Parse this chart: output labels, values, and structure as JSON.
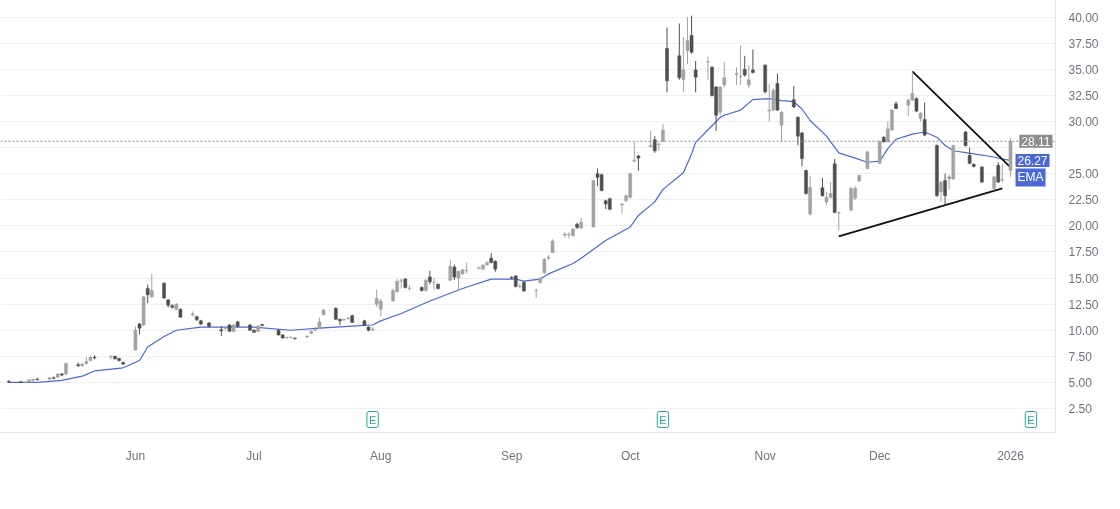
{
  "chart_data": {
    "type": "candlestick",
    "xlim": [
      "2025-04-30",
      "2026-01-13"
    ],
    "ylim": [
      0.2,
      41.6
    ],
    "xticks": [
      {
        "value": "2025-06-02",
        "label": "Jun"
      },
      {
        "value": "2025-07-01",
        "label": "Jul"
      },
      {
        "value": "2025-08-01",
        "label": "Aug"
      },
      {
        "value": "2025-09-02",
        "label": "Sep"
      },
      {
        "value": "2025-10-01",
        "label": "Oct"
      },
      {
        "value": "2025-11-03",
        "label": "Nov"
      },
      {
        "value": "2025-12-01",
        "label": "Dec"
      },
      {
        "value": "2026-01-02",
        "label": "2026"
      }
    ],
    "yticks": [
      {
        "value": 2.5,
        "label": "2.50"
      },
      {
        "value": 5,
        "label": "5.00"
      },
      {
        "value": 7.5,
        "label": "7.50"
      },
      {
        "value": 10,
        "label": "10.00"
      },
      {
        "value": 12.5,
        "label": "12.50"
      },
      {
        "value": 15,
        "label": "15.00"
      },
      {
        "value": 17.5,
        "label": "17.50"
      },
      {
        "value": 20,
        "label": "20.00"
      },
      {
        "value": 22.5,
        "label": "22.50"
      },
      {
        "value": 25,
        "label": "25.00"
      },
      {
        "value": 27.5,
        "label": null
      },
      {
        "value": 30,
        "label": "30.00"
      },
      {
        "value": 32.5,
        "label": "32.50"
      },
      {
        "value": 35,
        "label": "35.00"
      },
      {
        "value": 37.5,
        "label": "37.50"
      },
      {
        "value": 40,
        "label": "40.00"
      }
    ],
    "grid": "y",
    "series": [
      {
        "type": "line",
        "name": "EMA",
        "color": "#4a68d8",
        "x": [
          "2025-05-02",
          "2025-05-09",
          "2025-05-15",
          "2025-05-20",
          "2025-05-23",
          "2025-05-30",
          "2025-06-03",
          "2025-06-05",
          "2025-06-09",
          "2025-06-12",
          "2025-06-18",
          "2025-06-25",
          "2025-07-01",
          "2025-07-10",
          "2025-07-17",
          "2025-07-25",
          "2025-07-30",
          "2025-08-01",
          "2025-08-06",
          "2025-08-13",
          "2025-08-21",
          "2025-08-28",
          "2025-09-03",
          "2025-09-05",
          "2025-09-09",
          "2025-09-11",
          "2025-09-17",
          "2025-09-19",
          "2025-09-25",
          "2025-10-01",
          "2025-10-03",
          "2025-10-07",
          "2025-10-09",
          "2025-10-14",
          "2025-10-16",
          "2025-10-17",
          "2025-10-21",
          "2025-10-23",
          "2025-10-24",
          "2025-10-28",
          "2025-10-31",
          "2025-11-04",
          "2025-11-07",
          "2025-11-10",
          "2025-11-12",
          "2025-11-14",
          "2025-11-18",
          "2025-11-21",
          "2025-11-25",
          "2025-11-28",
          "2025-12-01",
          "2025-12-03",
          "2025-12-05",
          "2025-12-09",
          "2025-12-12",
          "2025-12-15",
          "2025-12-17",
          "2025-12-19",
          "2025-12-24",
          "2025-12-29",
          "2025-12-31",
          "2026-01-02"
        ],
        "values": [
          5.0,
          5.0,
          5.2,
          5.6,
          6.1,
          6.4,
          7.1,
          8.4,
          9.4,
          10.0,
          10.3,
          10.3,
          10.3,
          10.0,
          10.2,
          10.4,
          10.5,
          10.9,
          11.6,
          12.8,
          14.0,
          14.9,
          14.9,
          14.7,
          14.9,
          15.4,
          16.4,
          16.9,
          18.6,
          19.9,
          21.0,
          22.3,
          23.5,
          25.1,
          26.9,
          28.0,
          29.6,
          30.4,
          30.6,
          31.1,
          32.1,
          32.2,
          32.0,
          31.9,
          31.2,
          30.1,
          28.6,
          27.0,
          26.5,
          26.1,
          26.2,
          27.4,
          28.3,
          28.8,
          29.0,
          28.5,
          27.7,
          27.2,
          26.9,
          26.6,
          26.4,
          26.27
        ],
        "value_labels": [
          null,
          null,
          null,
          null,
          null,
          null,
          null,
          null,
          null,
          null,
          null,
          null,
          null,
          null,
          null,
          null,
          null,
          null,
          null,
          null,
          null,
          null,
          null,
          null,
          null,
          null,
          null,
          null,
          null,
          null,
          null,
          null,
          null,
          null,
          null,
          null,
          null,
          null,
          null,
          null,
          null,
          null,
          null,
          null,
          null,
          null,
          null,
          null,
          null,
          null,
          null,
          null,
          null,
          null,
          null,
          null,
          null,
          null,
          null,
          null,
          null,
          "26.27"
        ]
      },
      {
        "type": "line",
        "color": "#111111",
        "x": [
          "2025-12-09",
          "2026-01-02"
        ],
        "values": [
          34.8,
          25.6
        ]
      },
      {
        "type": "line",
        "color": "#111111",
        "x": [
          "2025-11-21",
          "2025-12-31"
        ],
        "values": [
          19.0,
          23.6
        ]
      },
      {
        "color": "#a3a3a3",
        "x": [
          "2025-05-06",
          "2025-05-07",
          "2025-05-08",
          "2025-05-12",
          "2025-05-14",
          "2025-05-16",
          "2025-05-20",
          "2025-05-21",
          "2025-05-22",
          "2025-05-27",
          "2025-06-02",
          "2025-06-04",
          "2025-06-06",
          "2025-06-12",
          "2025-06-16",
          "2025-06-24",
          "2025-06-26",
          "2025-07-02",
          "2025-07-09",
          "2025-07-10",
          "2025-07-14",
          "2025-07-15",
          "2025-07-16",
          "2025-07-17",
          "2025-07-18",
          "2025-07-23",
          "2025-07-24",
          "2025-07-30",
          "2025-07-31",
          "2025-08-01",
          "2025-08-04",
          "2025-08-05",
          "2025-08-06",
          "2025-08-08",
          "2025-08-12",
          "2025-08-14",
          "2025-08-18",
          "2025-08-20",
          "2025-08-21",
          "2025-08-22",
          "2025-08-25",
          "2025-08-26",
          "2025-08-27",
          "2025-09-04",
          "2025-09-08",
          "2025-09-09",
          "2025-09-10",
          "2025-09-11",
          "2025-09-12",
          "2025-09-15",
          "2025-09-16",
          "2025-09-17",
          "2025-09-19",
          "2025-09-22",
          "2025-09-29",
          "2025-09-30",
          "2025-10-01",
          "2025-10-02",
          "2025-10-06",
          "2025-10-08",
          "2025-10-09",
          "2025-10-14",
          "2025-10-15",
          "2025-10-20",
          "2025-10-23",
          "2025-10-24",
          "2025-10-27",
          "2025-10-28",
          "2025-10-30",
          "2025-11-04",
          "2025-11-05",
          "2025-11-07",
          "2025-11-14",
          "2025-11-18",
          "2025-11-19",
          "2025-11-21",
          "2025-11-24",
          "2025-11-25",
          "2025-11-26",
          "2025-11-28",
          "2025-12-01",
          "2025-12-03",
          "2025-12-04",
          "2025-12-08",
          "2025-12-09",
          "2025-12-11",
          "2025-12-16",
          "2025-12-18",
          "2025-12-19",
          "2025-12-29",
          "2025-12-31",
          "2026-01-02"
        ],
        "ohlc": [
          [
            5.0,
            5.1,
            4.9,
            5.05
          ],
          [
            5.05,
            5.3,
            5.0,
            5.25
          ],
          [
            5.2,
            5.35,
            5.1,
            5.3
          ],
          [
            5.3,
            5.5,
            5.2,
            5.45
          ],
          [
            5.5,
            5.9,
            5.45,
            5.8
          ],
          [
            5.8,
            6.9,
            5.7,
            6.8
          ],
          [
            6.6,
            6.9,
            6.5,
            6.75
          ],
          [
            6.8,
            7.4,
            6.7,
            7.0
          ],
          [
            7.1,
            7.6,
            7.0,
            7.4
          ],
          [
            7.45,
            7.6,
            7.2,
            7.5
          ],
          [
            8.1,
            10.35,
            8.05,
            10.0
          ],
          [
            10.5,
            13.3,
            10.4,
            13.2
          ],
          [
            13.2,
            15.4,
            13.1,
            13.8
          ],
          [
            12.0,
            12.6,
            11.9,
            12.5
          ],
          [
            11.45,
            11.8,
            11.3,
            11.55
          ],
          [
            10.15,
            10.3,
            10.0,
            10.2
          ],
          [
            9.9,
            10.6,
            9.8,
            10.5
          ],
          [
            9.9,
            10.5,
            9.8,
            10.4
          ],
          [
            9.25,
            9.4,
            9.2,
            9.3
          ],
          [
            9.3,
            9.4,
            9.2,
            9.35
          ],
          [
            9.35,
            9.5,
            9.3,
            9.45
          ],
          [
            9.7,
            10.0,
            9.6,
            9.9
          ],
          [
            10.0,
            10.3,
            9.9,
            10.05
          ],
          [
            10.2,
            11.2,
            10.1,
            10.8
          ],
          [
            11.5,
            12.0,
            11.4,
            11.95
          ],
          [
            11.0,
            11.1,
            10.9,
            11.05
          ],
          [
            11.1,
            11.3,
            11.0,
            11.15
          ],
          [
            10.05,
            10.3,
            9.9,
            10.1
          ],
          [
            12.5,
            13.9,
            12.2,
            13.05
          ],
          [
            12.0,
            13.0,
            11.35,
            12.8
          ],
          [
            12.8,
            14.0,
            12.7,
            13.8
          ],
          [
            13.7,
            14.9,
            13.6,
            14.7
          ],
          [
            14.7,
            15.0,
            14.0,
            14.75
          ],
          [
            14.0,
            14.3,
            13.8,
            14.05
          ],
          [
            13.8,
            14.9,
            13.7,
            14.8
          ],
          [
            14.55,
            15.0,
            13.9,
            14.6
          ],
          [
            14.8,
            16.7,
            14.7,
            16.15
          ],
          [
            15.0,
            15.7,
            13.9,
            15.65
          ],
          [
            15.4,
            15.9,
            15.3,
            15.8
          ],
          [
            15.7,
            16.5,
            15.4,
            15.75
          ],
          [
            15.95,
            16.1,
            15.8,
            16.0
          ],
          [
            15.85,
            16.3,
            15.8,
            16.25
          ],
          [
            16.25,
            16.6,
            16.2,
            16.5
          ],
          [
            14.2,
            14.5,
            14.0,
            14.25
          ],
          [
            13.75,
            14.0,
            13.1,
            13.8
          ],
          [
            14.55,
            15.1,
            14.5,
            15.0
          ],
          [
            15.5,
            16.9,
            15.4,
            16.8
          ],
          [
            16.9,
            17.2,
            16.7,
            17.0
          ],
          [
            17.45,
            18.7,
            17.4,
            18.55
          ],
          [
            19.1,
            19.4,
            18.9,
            19.2
          ],
          [
            19.15,
            19.4,
            18.8,
            19.2
          ],
          [
            19.05,
            19.8,
            19.0,
            19.7
          ],
          [
            19.8,
            20.8,
            19.7,
            20.35
          ],
          [
            19.9,
            24.4,
            19.8,
            24.35
          ],
          [
            22.0,
            22.2,
            21.2,
            22.1
          ],
          [
            22.4,
            23.0,
            22.3,
            22.9
          ],
          [
            22.75,
            25.1,
            22.6,
            25.0
          ],
          [
            26.2,
            28.1,
            26.1,
            26.3
          ],
          [
            27.6,
            29.1,
            27.5,
            27.7
          ],
          [
            27.8,
            28.0,
            27.2,
            27.85
          ],
          [
            28.1,
            29.8,
            28.0,
            29.2
          ],
          [
            34.0,
            38.1,
            32.8,
            34.95
          ],
          [
            36.8,
            40.0,
            35.5,
            37.75
          ],
          [
            35.7,
            36.2,
            34.0,
            35.75
          ],
          [
            30.9,
            33.4,
            30.6,
            33.3
          ],
          [
            33.5,
            35.7,
            33.3,
            34.2
          ],
          [
            34.5,
            35.2,
            33.5,
            34.6
          ],
          [
            34.3,
            37.3,
            33.5,
            34.35
          ],
          [
            33.5,
            35.4,
            33.2,
            34.0
          ],
          [
            31.0,
            33.6,
            30.0,
            31.1
          ],
          [
            31.1,
            33.2,
            31.0,
            33.0
          ],
          [
            29.65,
            31.0,
            28.05,
            30.9
          ],
          [
            21.15,
            24.8,
            21.0,
            23.7
          ],
          [
            22.3,
            23.3,
            22.0,
            22.75
          ],
          [
            22.75,
            24.2,
            22.6,
            23.1
          ],
          [
            21.2,
            21.4,
            19.55,
            21.25
          ],
          [
            21.5,
            23.7,
            21.4,
            23.6
          ],
          [
            22.65,
            23.8,
            22.5,
            23.6
          ],
          [
            24.3,
            24.9,
            24.2,
            24.85
          ],
          [
            25.5,
            27.2,
            25.4,
            27.1
          ],
          [
            26.0,
            28.2,
            25.9,
            28.05
          ],
          [
            28.05,
            30.0,
            28.0,
            29.3
          ],
          [
            29.2,
            31.2,
            29.1,
            31.1
          ],
          [
            31.55,
            32.2,
            30.5,
            32.05
          ],
          [
            32.05,
            34.8,
            32.0,
            32.7
          ],
          [
            30.3,
            30.9,
            30.0,
            30.8
          ],
          [
            23.25,
            24.3,
            22.3,
            24.2
          ],
          [
            24.5,
            24.9,
            23.5,
            24.7
          ],
          [
            24.5,
            27.8,
            24.4,
            27.7
          ],
          [
            23.55,
            24.8,
            23.4,
            24.7
          ],
          [
            24.4,
            25.9,
            24.2,
            24.45
          ],
          [
            25.3,
            28.4,
            24.7,
            28.11
          ]
        ]
      },
      {
        "color": "#4f4f4f",
        "x": [
          "2025-05-02",
          "2025-05-05",
          "2025-05-09",
          "2025-05-13",
          "2025-05-15",
          "2025-05-19",
          "2025-05-23",
          "2025-05-28",
          "2025-05-29",
          "2025-05-30",
          "2025-06-03",
          "2025-06-05",
          "2025-06-09",
          "2025-06-10",
          "2025-06-11",
          "2025-06-13",
          "2025-06-17",
          "2025-06-18",
          "2025-06-20",
          "2025-06-23",
          "2025-06-25",
          "2025-06-27",
          "2025-06-30",
          "2025-07-01",
          "2025-07-03",
          "2025-07-07",
          "2025-07-08",
          "2025-07-11",
          "2025-07-21",
          "2025-07-22",
          "2025-07-25",
          "2025-07-28",
          "2025-07-29",
          "2025-08-07",
          "2025-08-11",
          "2025-08-13",
          "2025-08-15",
          "2025-08-19",
          "2025-08-28",
          "2025-08-29",
          "2025-09-02",
          "2025-09-03",
          "2025-09-05",
          "2025-09-18",
          "2025-09-23",
          "2025-09-24",
          "2025-09-25",
          "2025-09-26",
          "2025-10-03",
          "2025-10-07",
          "2025-10-10",
          "2025-10-13",
          "2025-10-16",
          "2025-10-17",
          "2025-10-21",
          "2025-10-22",
          "2025-10-29",
          "2025-10-31",
          "2025-11-03",
          "2025-11-06",
          "2025-11-10",
          "2025-11-11",
          "2025-11-12",
          "2025-11-13",
          "2025-11-17",
          "2025-11-20",
          "2025-12-02",
          "2025-12-05",
          "2025-12-10",
          "2025-12-12",
          "2025-12-15",
          "2025-12-17",
          "2025-12-22",
          "2025-12-23",
          "2025-12-24",
          "2025-12-26",
          "2025-12-30"
        ],
        "ohlc": [
          [
            5.1,
            5.2,
            4.95,
            5.05
          ],
          [
            5.05,
            5.15,
            4.95,
            5.0
          ],
          [
            5.3,
            5.45,
            5.2,
            5.25
          ],
          [
            5.45,
            5.55,
            5.3,
            5.4
          ],
          [
            5.8,
            5.9,
            5.6,
            5.7
          ],
          [
            6.7,
            6.9,
            6.5,
            6.6
          ],
          [
            7.4,
            7.6,
            7.2,
            7.35
          ],
          [
            7.5,
            7.55,
            7.2,
            7.25
          ],
          [
            7.3,
            7.35,
            7.0,
            7.1
          ],
          [
            6.9,
            7.0,
            6.7,
            6.75
          ],
          [
            10.6,
            10.7,
            9.6,
            10.2
          ],
          [
            14.0,
            14.4,
            12.6,
            13.4
          ],
          [
            14.5,
            14.6,
            13.0,
            13.1
          ],
          [
            12.9,
            13.0,
            12.2,
            12.4
          ],
          [
            12.35,
            12.5,
            12.1,
            12.2
          ],
          [
            12.0,
            12.1,
            11.2,
            11.25
          ],
          [
            11.3,
            11.4,
            10.9,
            11.0
          ],
          [
            10.9,
            11.0,
            10.5,
            10.6
          ],
          [
            10.7,
            10.8,
            10.3,
            10.35
          ],
          [
            10.05,
            10.4,
            9.45,
            9.95
          ],
          [
            10.5,
            10.6,
            9.85,
            9.9
          ],
          [
            10.8,
            10.9,
            10.3,
            10.35
          ],
          [
            10.5,
            10.6,
            9.95,
            10.0
          ],
          [
            10.0,
            10.1,
            9.75,
            9.8
          ],
          [
            10.55,
            10.6,
            10.4,
            10.45
          ],
          [
            10.0,
            10.1,
            9.5,
            9.55
          ],
          [
            9.55,
            9.6,
            9.2,
            9.25
          ],
          [
            9.25,
            9.3,
            9.1,
            9.2
          ],
          [
            12.1,
            12.2,
            11.0,
            11.05
          ],
          [
            11.05,
            11.1,
            10.5,
            10.9
          ],
          [
            11.4,
            11.5,
            10.7,
            10.75
          ],
          [
            10.9,
            11.0,
            10.45,
            10.5
          ],
          [
            10.3,
            10.35,
            9.9,
            10.0
          ],
          [
            14.9,
            15.0,
            14.0,
            14.1
          ],
          [
            14.1,
            14.2,
            13.7,
            13.8
          ],
          [
            15.1,
            15.7,
            14.4,
            14.65
          ],
          [
            14.4,
            14.5,
            13.9,
            14.0
          ],
          [
            16.05,
            16.3,
            14.8,
            15.1
          ],
          [
            16.9,
            17.4,
            16.4,
            16.5
          ],
          [
            16.6,
            16.7,
            15.6,
            15.85
          ],
          [
            15.05,
            15.2,
            14.9,
            15.0
          ],
          [
            15.2,
            15.3,
            14.1,
            14.2
          ],
          [
            14.6,
            14.7,
            13.7,
            13.75
          ],
          [
            20.15,
            20.3,
            19.7,
            19.85
          ],
          [
            25.0,
            25.5,
            23.8,
            24.65
          ],
          [
            24.9,
            25.0,
            23.3,
            23.4
          ],
          [
            22.4,
            22.5,
            21.6,
            22.1
          ],
          [
            22.6,
            22.7,
            21.5,
            21.6
          ],
          [
            26.7,
            26.8,
            25.3,
            26.5
          ],
          [
            28.25,
            28.6,
            27.0,
            27.2
          ],
          [
            37.0,
            39.0,
            32.8,
            33.9
          ],
          [
            36.3,
            39.4,
            34.0,
            34.2
          ],
          [
            38.25,
            40.15,
            36.5,
            36.65
          ],
          [
            34.95,
            35.8,
            32.8,
            34.25
          ],
          [
            35.2,
            35.3,
            32.4,
            32.5
          ],
          [
            33.3,
            33.4,
            29.1,
            30.6
          ],
          [
            35.0,
            36.3,
            34.3,
            34.45
          ],
          [
            34.95,
            36.9,
            34.6,
            34.7
          ],
          [
            35.4,
            35.5,
            32.7,
            32.85
          ],
          [
            33.65,
            34.6,
            31.0,
            31.1
          ],
          [
            32.1,
            33.4,
            31.3,
            31.4
          ],
          [
            30.4,
            30.5,
            27.7,
            28.6
          ],
          [
            28.9,
            29.0,
            25.7,
            26.45
          ],
          [
            25.3,
            25.4,
            23.0,
            23.1
          ],
          [
            23.65,
            24.6,
            22.8,
            22.9
          ],
          [
            25.95,
            26.4,
            21.2,
            21.3
          ],
          [
            28.5,
            28.6,
            28.0,
            28.05
          ],
          [
            31.7,
            31.9,
            31.2,
            31.25
          ],
          [
            32.2,
            32.3,
            30.9,
            31.0
          ],
          [
            30.2,
            31.8,
            28.6,
            28.7
          ],
          [
            27.7,
            27.8,
            22.8,
            22.9
          ],
          [
            24.35,
            25.0,
            22.0,
            22.9
          ],
          [
            29.0,
            29.1,
            27.6,
            27.7
          ],
          [
            26.75,
            27.5,
            25.9,
            26.0
          ],
          [
            25.9,
            26.0,
            25.6,
            25.7
          ],
          [
            25.65,
            25.7,
            24.1,
            24.2
          ],
          [
            25.8,
            26.1,
            24.1,
            24.2
          ]
        ]
      }
    ],
    "ref_lines": [
      {
        "axis": "y",
        "value": 28.11,
        "label": "28.11",
        "color": "#8c8c8c",
        "line_style": "dotted"
      }
    ],
    "annotations": [
      {
        "text": "E",
        "x": "2025-07-30"
      },
      {
        "text": "E",
        "x": "2025-10-09"
      },
      {
        "text": "E",
        "x": "2026-01-07"
      }
    ]
  }
}
